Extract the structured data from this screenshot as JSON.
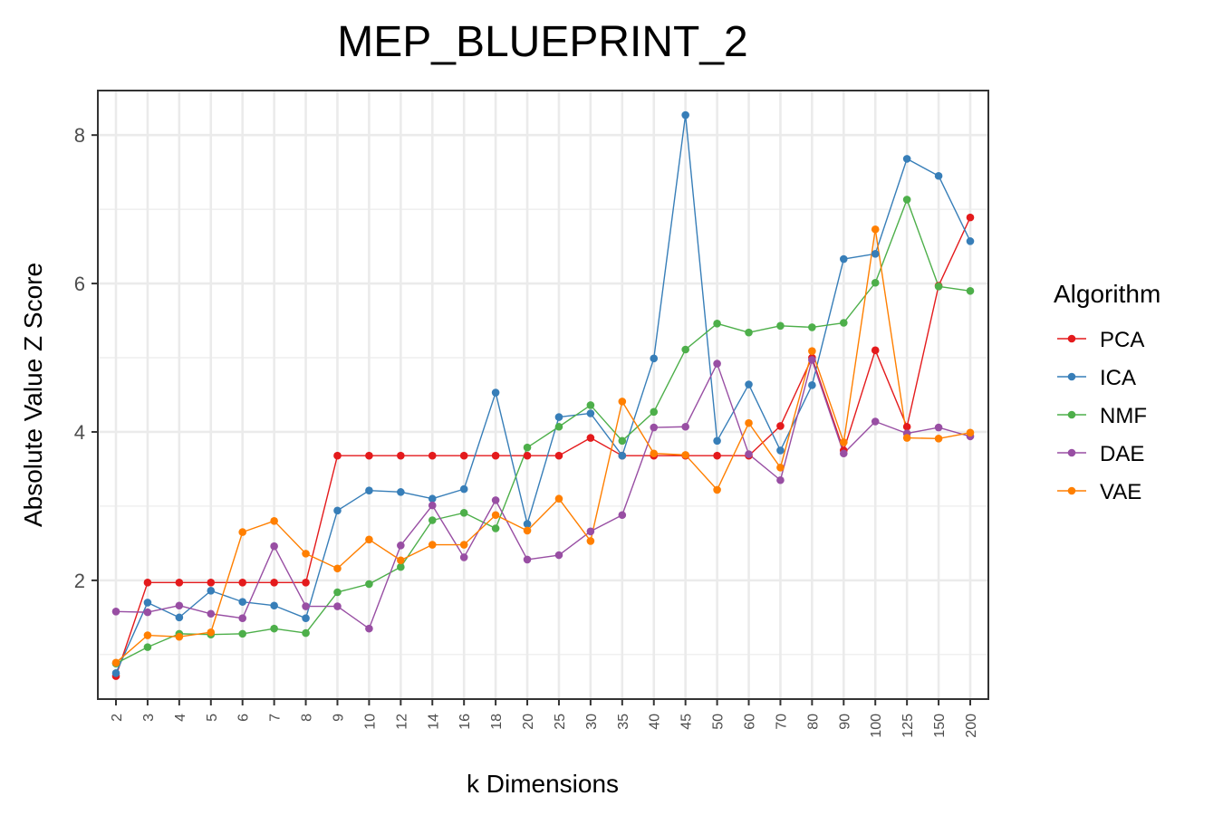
{
  "chart_data": {
    "type": "line",
    "title": "MEP_BLUEPRINT_2",
    "xlabel": "k Dimensions",
    "ylabel": "Absolute Value Z Score",
    "categories": [
      "2",
      "3",
      "4",
      "5",
      "6",
      "7",
      "8",
      "9",
      "10",
      "12",
      "14",
      "16",
      "18",
      "20",
      "25",
      "30",
      "35",
      "40",
      "45",
      "50",
      "60",
      "70",
      "80",
      "90",
      "100",
      "125",
      "150",
      "200"
    ],
    "ylim": [
      0.4,
      8.6
    ],
    "yticks": [
      2,
      4,
      6,
      8
    ],
    "y_minor_ticks": [
      1,
      3,
      5,
      7
    ],
    "grid": true,
    "legend": {
      "title": "Algorithm",
      "position": "right"
    },
    "series": [
      {
        "name": "PCA",
        "color": "#E41A1C",
        "values": [
          0.71,
          1.97,
          1.97,
          1.97,
          1.97,
          1.97,
          1.97,
          3.68,
          3.68,
          3.68,
          3.68,
          3.68,
          3.68,
          3.68,
          3.68,
          3.92,
          3.68,
          3.68,
          3.68,
          3.68,
          3.68,
          4.08,
          5.0,
          3.75,
          5.1,
          4.07,
          5.97,
          6.89
        ]
      },
      {
        "name": "ICA",
        "color": "#377EB8",
        "values": [
          0.75,
          1.7,
          1.5,
          1.86,
          1.71,
          1.66,
          1.49,
          2.94,
          3.21,
          3.19,
          3.1,
          3.23,
          4.53,
          2.76,
          4.2,
          4.25,
          3.68,
          4.99,
          8.27,
          3.88,
          4.64,
          3.75,
          4.63,
          6.33,
          6.4,
          7.68,
          7.45,
          6.57
        ]
      },
      {
        "name": "NMF",
        "color": "#4DAF4A",
        "values": [
          0.88,
          1.1,
          1.28,
          1.27,
          1.28,
          1.35,
          1.29,
          1.84,
          1.95,
          2.18,
          2.81,
          2.91,
          2.7,
          3.79,
          4.07,
          4.36,
          3.88,
          4.27,
          5.11,
          5.46,
          5.34,
          5.43,
          5.41,
          5.47,
          6.01,
          7.13,
          5.96,
          5.9
        ]
      },
      {
        "name": "DAE",
        "color": "#984EA3",
        "values": [
          1.58,
          1.57,
          1.66,
          1.55,
          1.49,
          2.46,
          1.65,
          1.65,
          1.35,
          2.47,
          3.01,
          2.31,
          3.08,
          2.28,
          2.34,
          2.66,
          2.88,
          4.06,
          4.07,
          4.92,
          3.7,
          3.35,
          4.97,
          3.71,
          4.14,
          3.98,
          4.06,
          3.94
        ]
      },
      {
        "name": "VAE",
        "color": "#FF7F00",
        "values": [
          0.89,
          1.26,
          1.24,
          1.3,
          2.65,
          2.8,
          2.36,
          2.16,
          2.55,
          2.27,
          2.48,
          2.48,
          2.88,
          2.67,
          3.1,
          2.53,
          4.41,
          3.71,
          3.69,
          3.22,
          4.12,
          3.52,
          5.09,
          3.86,
          6.73,
          3.92,
          3.91,
          3.99
        ]
      }
    ]
  }
}
